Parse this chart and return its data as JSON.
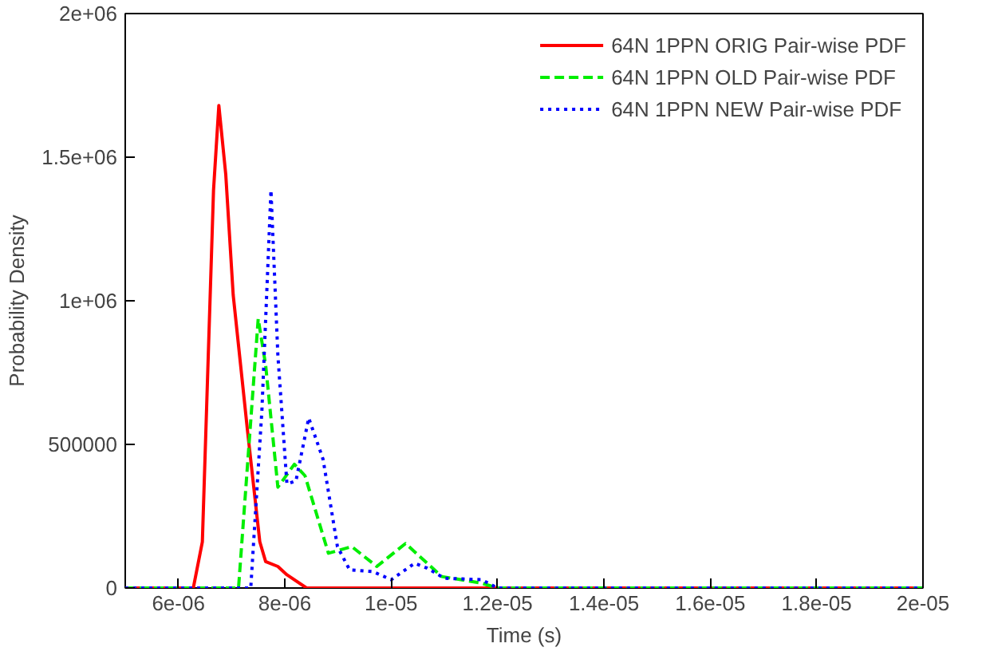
{
  "chart_data": {
    "type": "line",
    "xlabel": "Time (s)",
    "ylabel": "Probability Density",
    "xlim": [
      5e-06,
      2e-05
    ],
    "ylim": [
      0,
      2000000
    ],
    "xticks": [
      {
        "value": 6e-06,
        "label": "6e-06"
      },
      {
        "value": 8e-06,
        "label": "8e-06"
      },
      {
        "value": 1e-05,
        "label": "1e-05"
      },
      {
        "value": 1.2e-05,
        "label": "1.2e-05"
      },
      {
        "value": 1.4e-05,
        "label": "1.4e-05"
      },
      {
        "value": 1.6e-05,
        "label": "1.6e-05"
      },
      {
        "value": 1.8e-05,
        "label": "1.8e-05"
      },
      {
        "value": 2e-05,
        "label": "2e-05"
      }
    ],
    "yticks": [
      0,
      500000,
      {
        "value": 1000000,
        "label": "1e+06"
      },
      {
        "value": 1500000,
        "label": "1.5e+06"
      },
      {
        "value": 2000000,
        "label": "2e+06"
      }
    ],
    "grid": false,
    "legend": "top right",
    "marker": "none",
    "series": [
      {
        "name": "64N 1PPN ORIG Pair-wise PDF",
        "color": "#ff0000",
        "line_style": "solid",
        "x": [
          5e-06,
          6.28e-06,
          6.45e-06,
          6.66e-06,
          6.76e-06,
          6.89e-06,
          7.03e-06,
          7.3e-06,
          7.53e-06,
          7.64e-06,
          7.87e-06,
          8.04e-06,
          8.41e-06,
          2e-05
        ],
        "values": [
          0,
          0,
          161000,
          1385000,
          1680000,
          1440000,
          1020000,
          546000,
          161000,
          92000,
          75000,
          46000,
          0,
          0
        ]
      },
      {
        "name": "64N 1PPN OLD Pair-wise PDF",
        "color": "#00ee00",
        "line_style": "dashed",
        "x": [
          5e-06,
          7.13e-06,
          7.3e-06,
          7.5e-06,
          7.64e-06,
          7.87e-06,
          8.18e-06,
          8.38e-06,
          8.82e-06,
          9.26e-06,
          9.73e-06,
          1.027e-05,
          1.068e-05,
          1.095e-05,
          1.17e-05,
          1.2e-05,
          2e-05
        ],
        "values": [
          0,
          0,
          431000,
          937000,
          776000,
          351000,
          431000,
          391000,
          121000,
          144000,
          75000,
          155000,
          86000,
          40000,
          17000,
          0,
          0
        ]
      },
      {
        "name": "64N 1PPN NEW Pair-wise PDF",
        "color": "#0000ff",
        "line_style": "dotted",
        "x": [
          5e-06,
          7.36e-06,
          7.57e-06,
          7.74e-06,
          7.87e-06,
          8.04e-06,
          8.21e-06,
          8.45e-06,
          8.72e-06,
          8.99e-06,
          9.22e-06,
          9.66e-06,
          1e-05,
          1.044e-05,
          1.068e-05,
          1.1e-05,
          1.17e-05,
          1.2e-05,
          2e-05
        ],
        "values": [
          0,
          0,
          620000,
          1385000,
          810000,
          362000,
          373000,
          592000,
          448000,
          144000,
          63000,
          57000,
          29000,
          86000,
          69000,
          34000,
          29000,
          0,
          0
        ]
      }
    ]
  }
}
